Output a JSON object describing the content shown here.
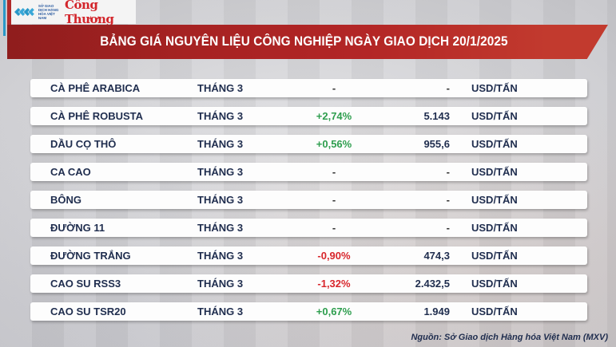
{
  "branding": {
    "exchange_logo_text": "SỞ GIAO DỊCH HÀNG HÓA VIỆT NAM",
    "publication": "Công Thương"
  },
  "header": {
    "title": "BẢNG GIÁ NGUYÊN LIỆU CÔNG NGHIỆP NGÀY GIAO DỊCH 20/1/2025"
  },
  "colors": {
    "banner_red": "#a62222",
    "up_green": "#2e9e4e",
    "down_red": "#d8262c",
    "text_navy": "#1f2d4e"
  },
  "table": {
    "rows": [
      {
        "name": "CÀ PHÊ ARABICA",
        "term": "THÁNG 3",
        "change": "-",
        "price": "-",
        "unit": "USD/TẤN",
        "dir": "flat"
      },
      {
        "name": "CÀ PHÊ ROBUSTA",
        "term": "THÁNG 3",
        "change": "+2,74%",
        "price": "5.143",
        "unit": "USD/TẤN",
        "dir": "up"
      },
      {
        "name": "DẦU CỌ THÔ",
        "term": "THÁNG 3",
        "change": "+0,56%",
        "price": "955,6",
        "unit": "USD/TẤN",
        "dir": "up"
      },
      {
        "name": "CA CAO",
        "term": "THÁNG 3",
        "change": "-",
        "price": "-",
        "unit": "USD/TẤN",
        "dir": "flat"
      },
      {
        "name": "BÔNG",
        "term": "THÁNG 3",
        "change": "-",
        "price": "-",
        "unit": "USD/TẤN",
        "dir": "flat"
      },
      {
        "name": "ĐƯỜNG 11",
        "term": "THÁNG 3",
        "change": "-",
        "price": "-",
        "unit": "USD/TẤN",
        "dir": "flat"
      },
      {
        "name": "ĐƯỜNG TRẮNG",
        "term": "THÁNG 3",
        "change": "-0,90%",
        "price": "474,3",
        "unit": "USD/TẤN",
        "dir": "down"
      },
      {
        "name": "CAO SU RSS3",
        "term": "THÁNG 3",
        "change": "-1,32%",
        "price": "2.432,5",
        "unit": "USD/TẤN",
        "dir": "down"
      },
      {
        "name": "CAO SU TSR20",
        "term": "THÁNG 3",
        "change": "+0,67%",
        "price": "1.949",
        "unit": "USD/TẤN",
        "dir": "up"
      }
    ]
  },
  "footer": {
    "source": "Nguồn: Sở Giao dịch Hàng hóa Việt Nam (MXV)"
  }
}
